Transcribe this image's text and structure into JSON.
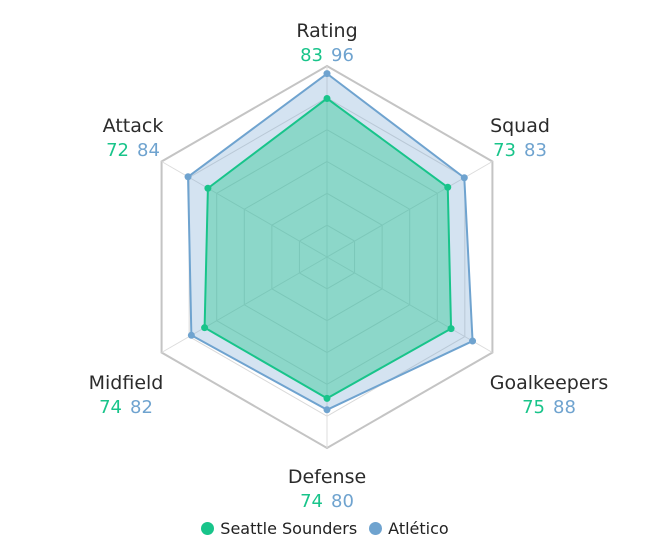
{
  "chart_data": {
    "type": "radar",
    "axes": [
      "Rating",
      "Squad",
      "Goalkeepers",
      "Defense",
      "Midfield",
      "Attack"
    ],
    "series": [
      {
        "name": "Seattle Sounders",
        "values": [
          83,
          73,
          75,
          74,
          74,
          72
        ],
        "color": "#18c48a",
        "fill": "rgba(24,196,138,0.38)"
      },
      {
        "name": "Atlético",
        "values": [
          96,
          83,
          88,
          80,
          82,
          84
        ],
        "color": "#6fa3cf",
        "fill": "rgba(111,163,207,0.30)"
      }
    ],
    "r_range": [
      0,
      100
    ],
    "grid": true,
    "legend": "bottom"
  },
  "labels": {
    "rating": {
      "name": "Rating",
      "v1": "83",
      "v2": "96"
    },
    "squad": {
      "name": "Squad",
      "v1": "73",
      "v2": "83"
    },
    "goalkeepers": {
      "name": "Goalkeepers",
      "v1": "75",
      "v2": "88"
    },
    "defense": {
      "name": "Defense",
      "v1": "74",
      "v2": "80"
    },
    "midfield": {
      "name": "Midfield",
      "v1": "74",
      "v2": "82"
    },
    "attack": {
      "name": "Attack",
      "v1": "72",
      "v2": "84"
    }
  },
  "legend": {
    "s1": "Seattle Sounders",
    "s2": "Atlético"
  }
}
